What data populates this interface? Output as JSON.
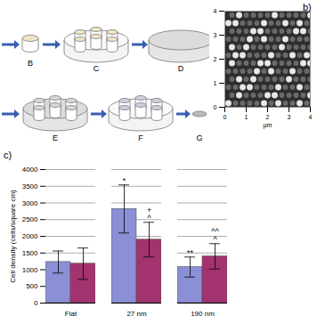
{
  "diagram": {
    "steps": [
      "B",
      "C",
      "D",
      "E",
      "F",
      "G"
    ]
  },
  "afm": {
    "label": "b)",
    "x_label": "µm",
    "xlim": [
      0,
      4
    ],
    "ylim": [
      0,
      4
    ],
    "xticks": [
      0,
      1,
      2,
      3,
      4
    ],
    "yticks": [
      0,
      1,
      2,
      3,
      4
    ]
  },
  "chart_data": {
    "type": "bar",
    "panel_label": "c)",
    "y_label": "Cell density (cells/square cm)",
    "categories": [
      "Flat",
      "27 nm",
      "190 nm"
    ],
    "series": [
      {
        "color": "#8a8fd6",
        "values": [
          1230,
          2820,
          1080
        ],
        "errors": [
          330,
          720,
          300
        ],
        "annotations": [
          [],
          [
            "*"
          ],
          [
            "**"
          ]
        ]
      },
      {
        "color": "#a3336e",
        "values": [
          1180,
          1900,
          1400
        ],
        "errors": [
          470,
          520,
          380
        ],
        "annotations": [
          [],
          [
            "+",
            "^"
          ],
          [
            "^^",
            "^"
          ]
        ]
      }
    ],
    "ylim": [
      0,
      4000
    ],
    "yticks": [
      0,
      500,
      1000,
      1500,
      2000,
      2500,
      3000,
      3500,
      4000
    ],
    "grid": true
  }
}
